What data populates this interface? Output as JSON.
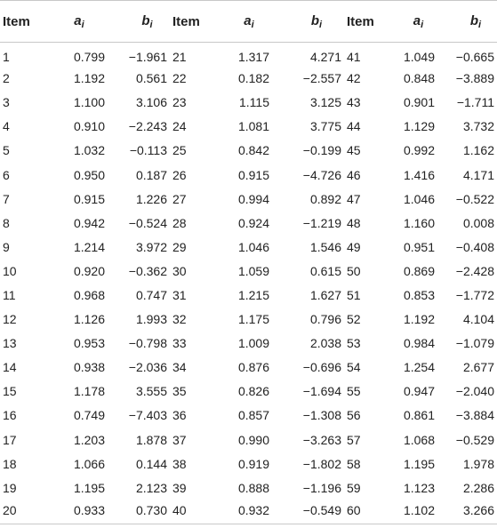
{
  "header": {
    "item": "Item",
    "a": "a",
    "b": "b",
    "sub": "i"
  },
  "rows": [
    [
      "1",
      "0.799",
      "−1.961",
      "21",
      "1.317",
      "4.271",
      "41",
      "1.049",
      "−0.665"
    ],
    [
      "2",
      "1.192",
      "0.561",
      "22",
      "0.182",
      "−2.557",
      "42",
      "0.848",
      "−3.889"
    ],
    [
      "3",
      "1.100",
      "3.106",
      "23",
      "1.115",
      "3.125",
      "43",
      "0.901",
      "−1.711"
    ],
    [
      "4",
      "0.910",
      "−2.243",
      "24",
      "1.081",
      "3.775",
      "44",
      "1.129",
      "3.732"
    ],
    [
      "5",
      "1.032",
      "−0.113",
      "25",
      "0.842",
      "−0.199",
      "45",
      "0.992",
      "1.162"
    ],
    [
      "6",
      "0.950",
      "0.187",
      "26",
      "0.915",
      "−4.726",
      "46",
      "1.416",
      "4.171"
    ],
    [
      "7",
      "0.915",
      "1.226",
      "27",
      "0.994",
      "0.892",
      "47",
      "1.046",
      "−0.522"
    ],
    [
      "8",
      "0.942",
      "−0.524",
      "28",
      "0.924",
      "−1.219",
      "48",
      "1.160",
      "0.008"
    ],
    [
      "9",
      "1.214",
      "3.972",
      "29",
      "1.046",
      "1.546",
      "49",
      "0.951",
      "−0.408"
    ],
    [
      "10",
      "0.920",
      "−0.362",
      "30",
      "1.059",
      "0.615",
      "50",
      "0.869",
      "−2.428"
    ],
    [
      "11",
      "0.968",
      "0.747",
      "31",
      "1.215",
      "1.627",
      "51",
      "0.853",
      "−1.772"
    ],
    [
      "12",
      "1.126",
      "1.993",
      "32",
      "1.175",
      "0.796",
      "52",
      "1.192",
      "4.104"
    ],
    [
      "13",
      "0.953",
      "−0.798",
      "33",
      "1.009",
      "2.038",
      "53",
      "0.984",
      "−1.079"
    ],
    [
      "14",
      "0.938",
      "−2.036",
      "34",
      "0.876",
      "−0.696",
      "54",
      "1.254",
      "2.677"
    ],
    [
      "15",
      "1.178",
      "3.555",
      "35",
      "0.826",
      "−1.694",
      "55",
      "0.947",
      "−2.040"
    ],
    [
      "16",
      "0.749",
      "−7.403",
      "36",
      "0.857",
      "−1.308",
      "56",
      "0.861",
      "−3.884"
    ],
    [
      "17",
      "1.203",
      "1.878",
      "37",
      "0.990",
      "−3.263",
      "57",
      "1.068",
      "−0.529"
    ],
    [
      "18",
      "1.066",
      "0.144",
      "38",
      "0.919",
      "−1.802",
      "58",
      "1.195",
      "1.978"
    ],
    [
      "19",
      "1.195",
      "2.123",
      "39",
      "0.888",
      "−1.196",
      "59",
      "1.123",
      "2.286"
    ],
    [
      "20",
      "0.933",
      "0.730",
      "40",
      "0.932",
      "−0.549",
      "60",
      "1.102",
      "3.266"
    ]
  ]
}
